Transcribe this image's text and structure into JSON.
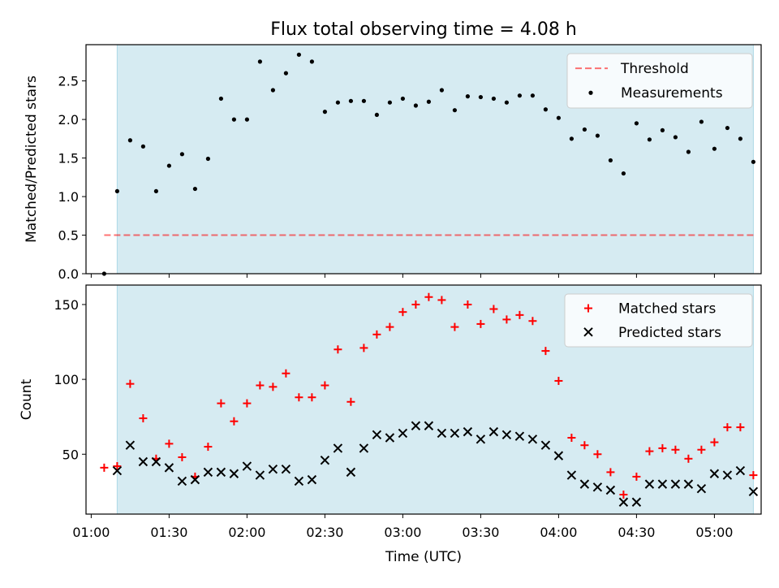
{
  "figure": {
    "title": "Flux total observing time = 4.08 h",
    "xlabel": "Time (UTC)"
  },
  "chart_data": [
    {
      "type": "scatter",
      "title": "Flux total observing time = 4.08 h",
      "xlabel": "",
      "ylabel": "Matched/Predicted stars",
      "xlim": [
        "00:58",
        "05:18"
      ],
      "ylim": [
        0,
        2.97
      ],
      "yticks": [
        0.0,
        0.5,
        1.0,
        1.5,
        2.0,
        2.5
      ],
      "ytick_labels": [
        "0.0",
        "0.5",
        "1.0",
        "1.5",
        "2.0",
        "2.5"
      ],
      "shaded_span": [
        "01:10",
        "05:15"
      ],
      "shaded_color": "#add8e6",
      "threshold": {
        "name": "Threshold",
        "y": 0.5,
        "x": [
          "01:05",
          "05:15"
        ],
        "color": "#ff0000",
        "style": "dashed"
      },
      "legend": {
        "location": "upper right",
        "entries": [
          "Threshold",
          "Measurements"
        ]
      },
      "series": [
        {
          "name": "Measurements",
          "marker": "dot",
          "color": "#000000",
          "x": [
            "01:05",
            "01:10",
            "01:15",
            "01:20",
            "01:25",
            "01:30",
            "01:35",
            "01:40",
            "01:45",
            "01:50",
            "01:55",
            "02:00",
            "02:05",
            "02:10",
            "02:15",
            "02:20",
            "02:25",
            "02:30",
            "02:35",
            "02:40",
            "02:45",
            "02:50",
            "02:55",
            "03:00",
            "03:05",
            "03:10",
            "03:15",
            "03:20",
            "03:25",
            "03:30",
            "03:35",
            "03:40",
            "03:45",
            "03:50",
            "03:55",
            "04:00",
            "04:05",
            "04:10",
            "04:15",
            "04:20",
            "04:25",
            "04:30",
            "04:35",
            "04:40",
            "04:45",
            "04:50",
            "04:55",
            "05:00",
            "05:05",
            "05:10",
            "05:15"
          ],
          "y": [
            0.0,
            1.07,
            1.73,
            1.65,
            1.07,
            1.4,
            1.55,
            1.1,
            1.49,
            2.27,
            2.0,
            2.0,
            2.75,
            2.38,
            2.6,
            2.84,
            2.75,
            2.1,
            2.22,
            2.24,
            2.24,
            2.06,
            2.22,
            2.27,
            2.18,
            2.23,
            2.38,
            2.12,
            2.3,
            2.29,
            2.27,
            2.22,
            2.31,
            2.31,
            2.13,
            2.02,
            1.75,
            1.87,
            1.79,
            1.47,
            1.3,
            1.95,
            1.74,
            1.86,
            1.77,
            1.58,
            1.97,
            1.62,
            1.89,
            1.75,
            1.45
          ]
        }
      ]
    },
    {
      "type": "scatter",
      "xlabel": "Time (UTC)",
      "ylabel": "Count",
      "xlim": [
        "00:58",
        "05:18"
      ],
      "ylim": [
        10,
        163
      ],
      "yticks": [
        50,
        100,
        150
      ],
      "ytick_labels": [
        "50",
        "100",
        "150"
      ],
      "xticks": [
        "01:00",
        "01:30",
        "02:00",
        "02:30",
        "03:00",
        "03:30",
        "04:00",
        "04:30",
        "05:00"
      ],
      "xtick_labels": [
        "01:00",
        "01:30",
        "02:00",
        "02:30",
        "03:00",
        "03:30",
        "04:00",
        "04:30",
        "05:00"
      ],
      "shaded_span": [
        "01:10",
        "05:15"
      ],
      "shaded_color": "#add8e6",
      "legend": {
        "location": "upper right",
        "entries": [
          "Matched stars",
          "Predicted stars"
        ]
      },
      "series": [
        {
          "name": "Matched stars",
          "marker": "plus",
          "color": "#ff0000",
          "x": [
            "01:05",
            "01:10",
            "01:15",
            "01:20",
            "01:25",
            "01:30",
            "01:35",
            "01:40",
            "01:45",
            "01:50",
            "01:55",
            "02:00",
            "02:05",
            "02:10",
            "02:15",
            "02:20",
            "02:25",
            "02:30",
            "02:35",
            "02:40",
            "02:45",
            "02:50",
            "02:55",
            "03:00",
            "03:05",
            "03:10",
            "03:15",
            "03:20",
            "03:25",
            "03:30",
            "03:35",
            "03:40",
            "03:45",
            "03:50",
            "03:55",
            "04:00",
            "04:05",
            "04:10",
            "04:15",
            "04:20",
            "04:25",
            "04:30",
            "04:35",
            "04:40",
            "04:45",
            "04:50",
            "04:55",
            "05:00",
            "05:05",
            "05:10",
            "05:15"
          ],
          "y": [
            41,
            42,
            97,
            74,
            47,
            57,
            48,
            35,
            55,
            84,
            72,
            84,
            96,
            95,
            104,
            88,
            88,
            96,
            120,
            85,
            121,
            130,
            135,
            145,
            150,
            155,
            153,
            135,
            150,
            137,
            147,
            140,
            143,
            139,
            119,
            99,
            61,
            56,
            50,
            38,
            23,
            35,
            52,
            54,
            53,
            47,
            53,
            58,
            68,
            68,
            36
          ]
        },
        {
          "name": "Predicted stars",
          "marker": "x",
          "color": "#000000",
          "x": [
            "01:10",
            "01:15",
            "01:20",
            "01:25",
            "01:30",
            "01:35",
            "01:40",
            "01:45",
            "01:50",
            "01:55",
            "02:00",
            "02:05",
            "02:10",
            "02:15",
            "02:20",
            "02:25",
            "02:30",
            "02:35",
            "02:40",
            "02:45",
            "02:50",
            "02:55",
            "03:00",
            "03:05",
            "03:10",
            "03:15",
            "03:20",
            "03:25",
            "03:30",
            "03:35",
            "03:40",
            "03:45",
            "03:50",
            "03:55",
            "04:00",
            "04:05",
            "04:10",
            "04:15",
            "04:20",
            "04:25",
            "04:30",
            "04:35",
            "04:40",
            "04:45",
            "04:50",
            "04:55",
            "05:00",
            "05:05",
            "05:10",
            "05:15"
          ],
          "y": [
            39,
            56,
            45,
            45,
            41,
            32,
            33,
            38,
            38,
            37,
            42,
            36,
            40,
            40,
            32,
            33,
            46,
            54,
            38,
            54,
            63,
            61,
            64,
            69,
            69,
            64,
            64,
            65,
            60,
            65,
            63,
            62,
            60,
            56,
            49,
            36,
            30,
            28,
            26,
            18,
            18,
            30,
            30,
            30,
            30,
            27,
            37,
            36,
            39,
            25
          ]
        }
      ]
    }
  ]
}
